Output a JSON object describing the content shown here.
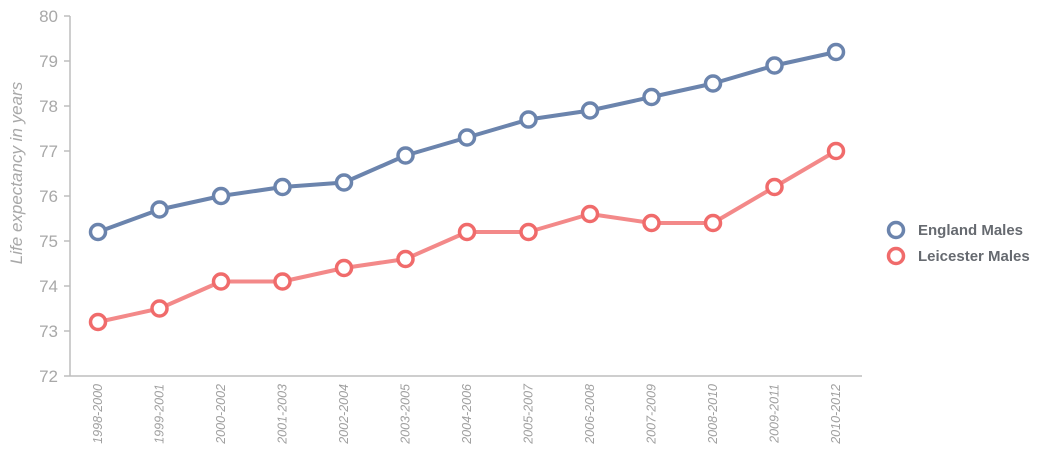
{
  "chart_data": {
    "type": "line",
    "title": "",
    "xlabel": "",
    "ylabel": "Life expectancy in years",
    "ylim": [
      72,
      80
    ],
    "yticks": [
      72,
      73,
      74,
      75,
      76,
      77,
      78,
      79,
      80
    ],
    "grid": false,
    "legend_position": "right",
    "categories": [
      "1998-2000",
      "1999-2001",
      "2000-2002",
      "2001-2003",
      "2002-2004",
      "2003-2005",
      "2004-2006",
      "2005-2007",
      "2006-2008",
      "2007-2009",
      "2008-2010",
      "2009-2011",
      "2010-2012"
    ],
    "series": [
      {
        "name": "England Males",
        "color": "#6b84ad",
        "values": [
          75.2,
          75.7,
          76.0,
          76.2,
          76.3,
          76.9,
          77.3,
          77.7,
          77.9,
          78.2,
          78.5,
          78.9,
          79.2
        ]
      },
      {
        "name": "Leicester Males",
        "color": "#f06b6b",
        "values": [
          73.2,
          73.5,
          74.1,
          74.1,
          74.4,
          74.6,
          75.2,
          75.2,
          75.6,
          75.4,
          75.4,
          76.2,
          77.0
        ]
      }
    ]
  }
}
